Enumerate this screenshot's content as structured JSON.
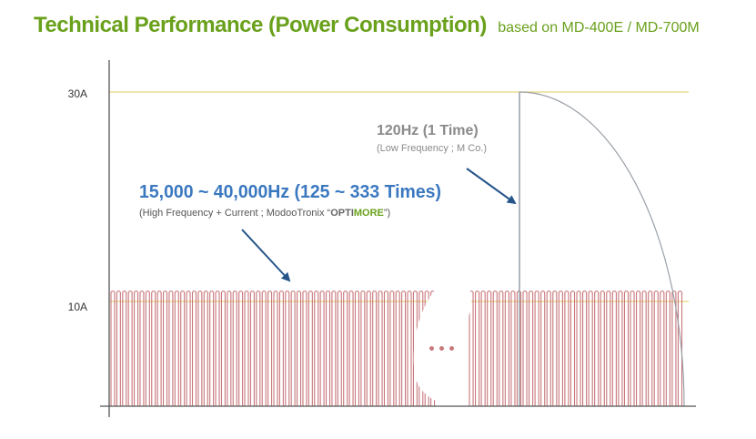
{
  "header": {
    "title": "Technical Performance (Power Consumption)",
    "subtitle": "based on MD-400E / MD-700M"
  },
  "colors": {
    "title_green": "#6aa11c",
    "pulse_red": "#c8767a",
    "threshold_yellow": "#e8d87a",
    "high_freq_blue": "#3a78c0",
    "arrow_navy": "#26558a",
    "low_freq_gray": "#8a8a8a",
    "curve_gray": "#9aa0a8",
    "more_green": "#6aa11c"
  },
  "chart_data": {
    "type": "line",
    "title": "Technical Performance (Power Consumption)",
    "subtitle": "based on MD-400E / MD-700M",
    "y_unit": "A",
    "ylim": [
      0,
      33.5
    ],
    "y_ticks": [
      {
        "value": 10,
        "label": "10A"
      },
      {
        "value": 30,
        "label": "30A"
      }
    ],
    "reference_lines": [
      10,
      30
    ],
    "series": [
      {
        "pulses_left": 56,
        "pulses_right": 36,
        "amplitude": 11
      },
      {
        "peak_current": 30,
        "shape": "vertical rise then quarter-circle decay"
      }
    ],
    "ellipsis": "•••",
    "annotations": {
      "high": {
        "main": "15,000 ~ 40,000Hz (125 ~ 333 Times)",
        "sub_prefix": "(High Frequency + Current ; ModooTronix “",
        "sub_opti": "OPTI",
        "sub_more": "MORE",
        "sub_suffix": "”)"
      },
      "low": {
        "main": "120Hz (1 Time)",
        "sub": "(Low Frequency ; M Co.)"
      }
    }
  }
}
